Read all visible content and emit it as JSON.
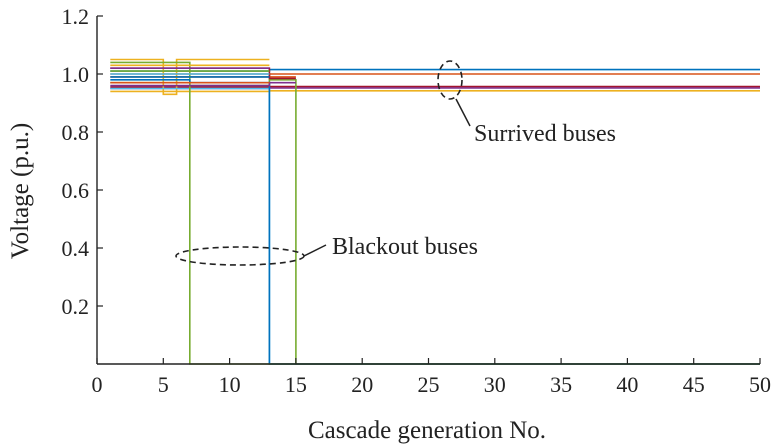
{
  "chart_data": {
    "type": "line",
    "xlabel": "Cascade generation No.",
    "ylabel": "Voltage (p.u.)",
    "xlim": [
      0,
      50
    ],
    "ylim": [
      0,
      1.2
    ],
    "xticks": [
      0,
      5,
      10,
      15,
      20,
      25,
      30,
      35,
      40,
      45,
      50
    ],
    "yticks": [
      0.2,
      0.4,
      0.6,
      0.8,
      1.0,
      1.2
    ],
    "xtick_labels": [
      "0",
      "5",
      "10",
      "15",
      "20",
      "25",
      "30",
      "35",
      "40",
      "45",
      "50"
    ],
    "ytick_labels": [
      "0.2",
      "0.4",
      "0.6",
      "0.8",
      "1.0",
      "1.2"
    ],
    "grid": false,
    "series": [
      {
        "color": "#0072bd",
        "x": [
          1,
          13,
          13,
          50
        ],
        "y": [
          1.01,
          1.01,
          1.015,
          1.015
        ]
      },
      {
        "color": "#d95319",
        "x": [
          1,
          13,
          13,
          50
        ],
        "y": [
          0.99,
          0.99,
          1.0,
          1.0
        ]
      },
      {
        "color": "#7e2f8e",
        "x": [
          1,
          13,
          13,
          50
        ],
        "y": [
          0.95,
          0.95,
          0.952,
          0.952
        ]
      },
      {
        "color": "#edb120",
        "x": [
          1,
          13,
          13,
          50
        ],
        "y": [
          0.94,
          0.94,
          0.942,
          0.942
        ]
      },
      {
        "color": "#a2142f",
        "x": [
          1,
          13,
          13,
          50
        ],
        "y": [
          0.955,
          0.955,
          0.957,
          0.957
        ]
      },
      {
        "color": "#edb120",
        "x": [
          1,
          5,
          5,
          6,
          6,
          7,
          7,
          13
        ],
        "y": [
          1.05,
          1.05,
          0.93,
          0.93,
          1.05,
          1.05,
          1.05,
          1.05
        ]
      },
      {
        "color": "#77ac30",
        "x": [
          1,
          7,
          7,
          13,
          13,
          15,
          15,
          15,
          15,
          50
        ],
        "y": [
          1.04,
          1.04,
          0.96,
          0.96,
          0.98,
          0.98,
          0.98,
          0.0,
          0.0,
          0.0
        ]
      },
      {
        "color": "#4dbeee",
        "x": [
          1,
          13,
          13,
          50
        ],
        "y": [
          0.95,
          0.95,
          0.0,
          0.0
        ]
      },
      {
        "color": "#0072bd",
        "x": [
          1,
          7,
          7,
          13,
          13,
          50
        ],
        "y": [
          0.98,
          0.98,
          0.97,
          0.97,
          0.0,
          0.0
        ]
      },
      {
        "color": "#77ac30",
        "x": [
          1,
          7,
          7,
          50
        ],
        "y": [
          0.97,
          0.97,
          0.0,
          0.0
        ]
      },
      {
        "color": "#d95319",
        "x": [
          1,
          13,
          13,
          15
        ],
        "y": [
          1.0,
          1.0,
          0.99,
          0.99
        ]
      },
      {
        "color": "#7e2f8e",
        "x": [
          1,
          13,
          13,
          15
        ],
        "y": [
          0.96,
          0.96,
          0.97,
          0.97
        ]
      },
      {
        "color": "#a2142f",
        "x": [
          1,
          13,
          13,
          15
        ],
        "y": [
          1.02,
          1.02,
          0.985,
          0.985
        ]
      },
      {
        "color": "#edb120",
        "x": [
          1,
          13
        ],
        "y": [
          1.03,
          1.03
        ]
      },
      {
        "color": "#4dbeee",
        "x": [
          1,
          13
        ],
        "y": [
          1.0,
          1.0
        ]
      },
      {
        "color": "#0072bd",
        "x": [
          1,
          13
        ],
        "y": [
          0.99,
          0.99
        ]
      },
      {
        "color": "#77ac30",
        "x": [
          1,
          13
        ],
        "y": [
          1.01,
          1.01
        ]
      },
      {
        "color": "#7e2f8e",
        "x": [
          1,
          13
        ],
        "y": [
          1.02,
          1.02
        ]
      },
      {
        "color": "#d95319",
        "x": [
          1,
          13
        ],
        "y": [
          0.97,
          0.97
        ]
      }
    ],
    "annotations": [
      {
        "text": "Surrived buses"
      },
      {
        "text": "Blackout buses"
      }
    ]
  }
}
